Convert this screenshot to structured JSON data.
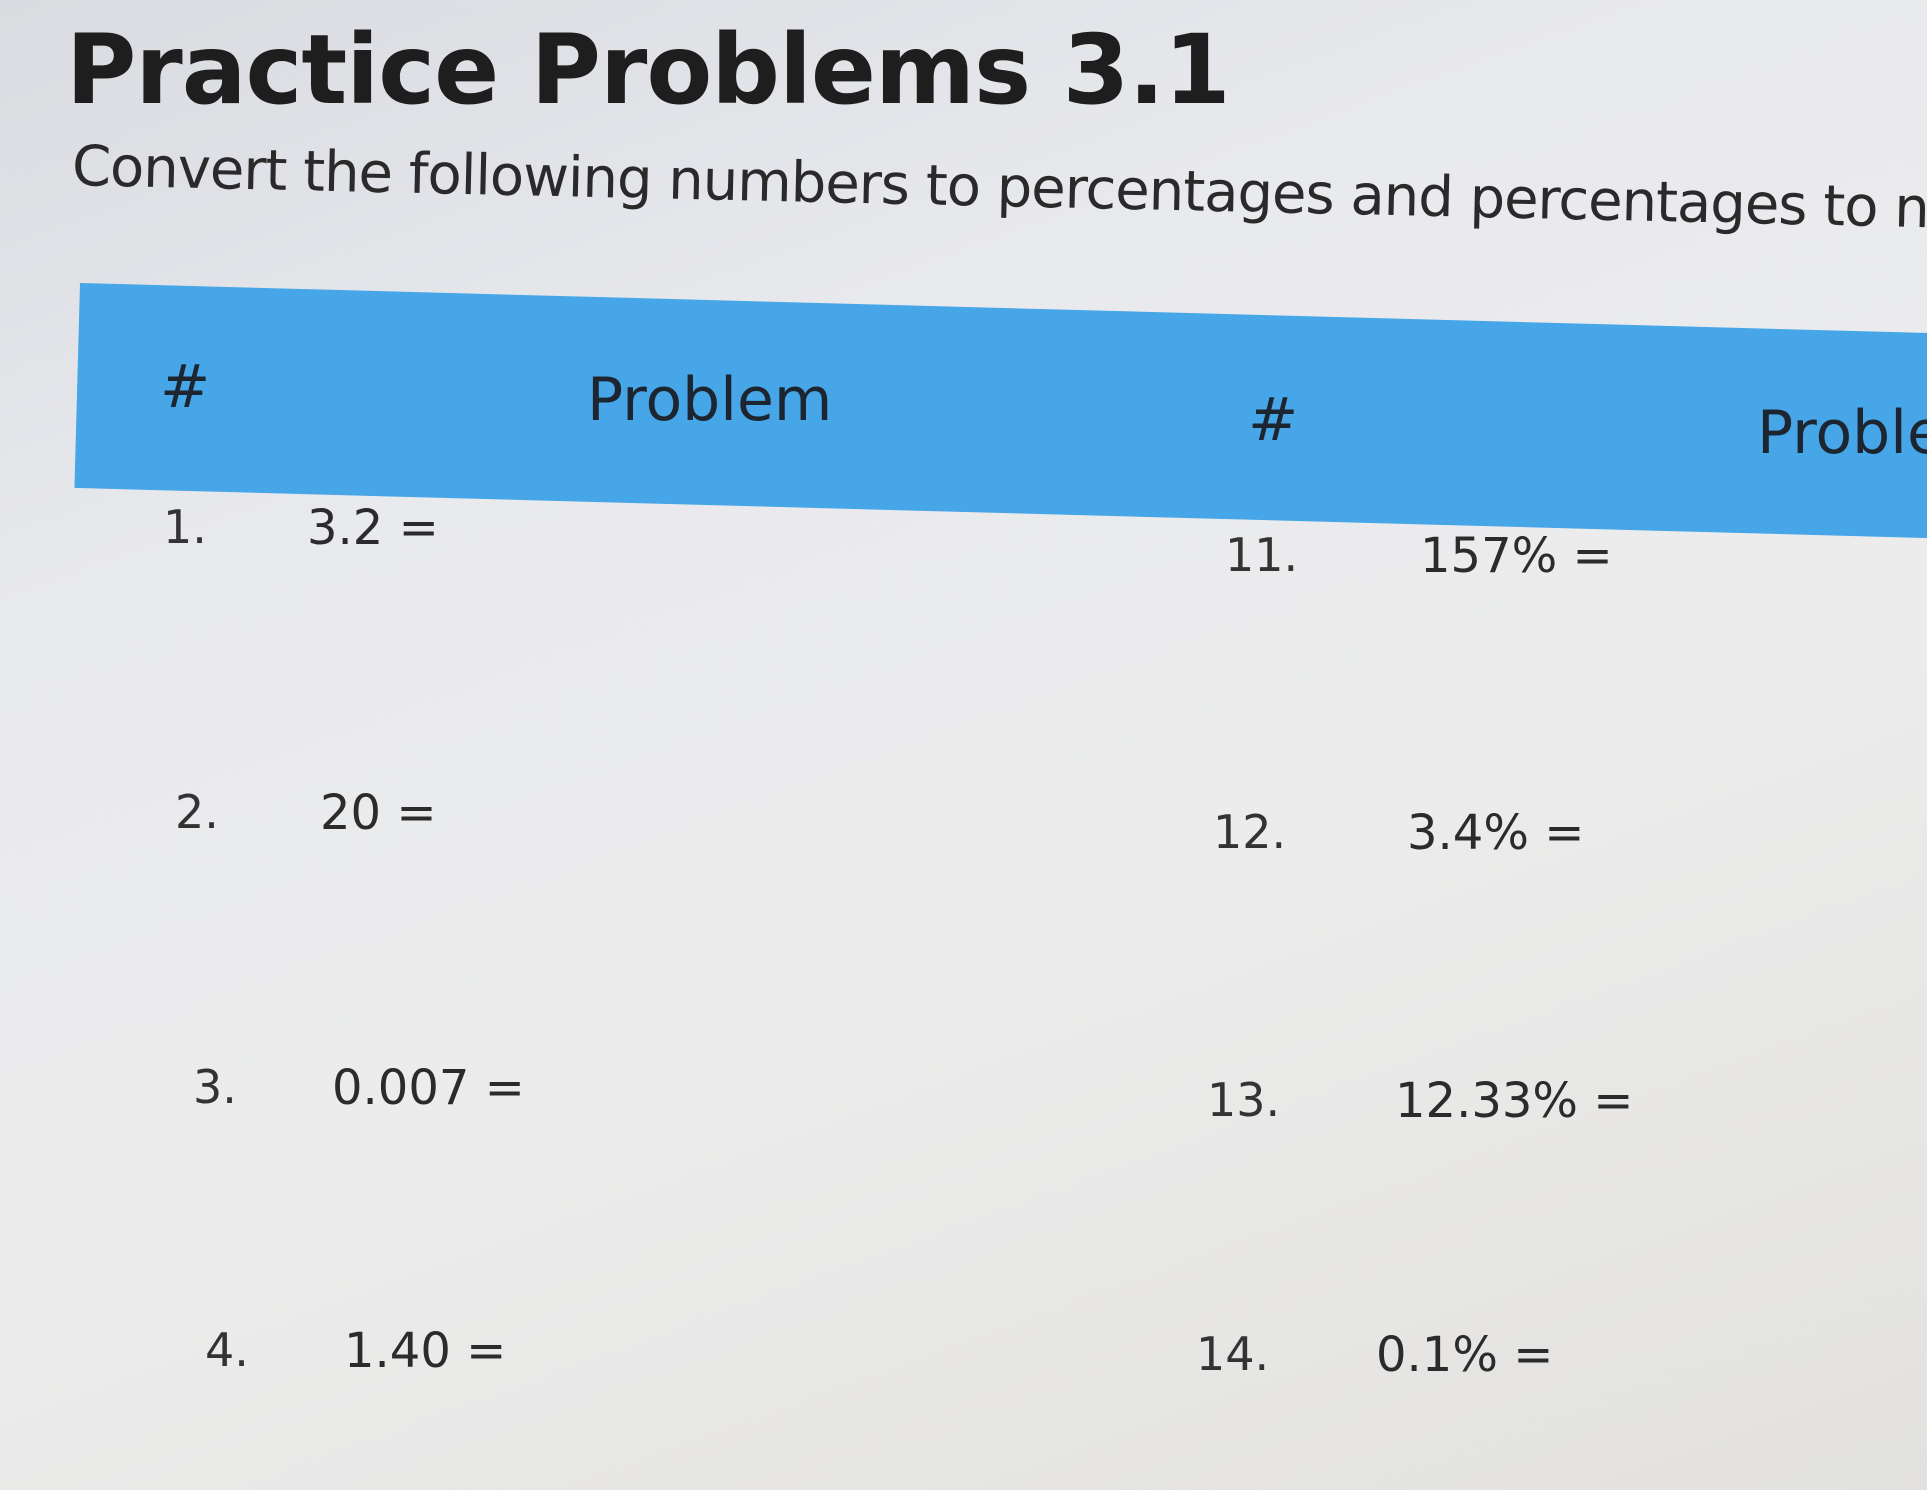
{
  "title": "Practice Problems 3.1",
  "subtitle": "Convert the following numbers to percentages and percentages to numb",
  "table": {
    "header_color": "#46a6e8",
    "headers": [
      "#",
      "Problem",
      "#",
      "Proble"
    ],
    "left_rows": [
      {
        "num": "1.",
        "problem": "3.2 ="
      },
      {
        "num": "2.",
        "problem": "20 ="
      },
      {
        "num": "3.",
        "problem": "0.007 ="
      },
      {
        "num": "4.",
        "problem": "1.40 ="
      }
    ],
    "right_rows": [
      {
        "num": "11.",
        "problem": "157% ="
      },
      {
        "num": "12.",
        "problem": "3.4% ="
      },
      {
        "num": "13.",
        "problem": "12.33% ="
      },
      {
        "num": "14.",
        "problem": "0.1% ="
      }
    ]
  }
}
